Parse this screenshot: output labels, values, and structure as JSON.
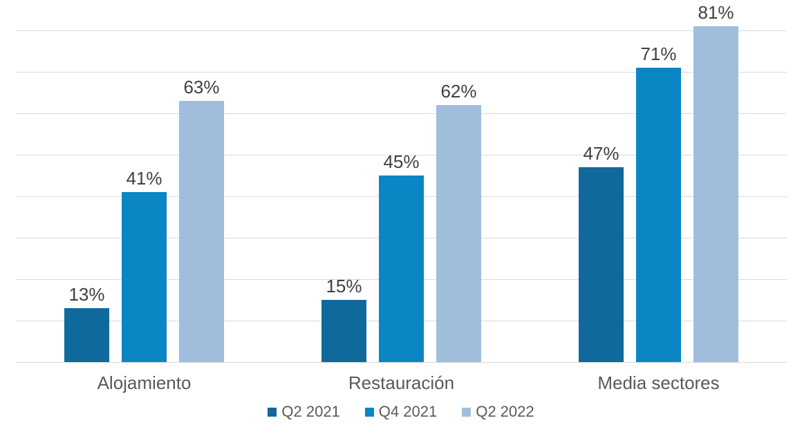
{
  "chart_data": {
    "type": "bar",
    "title": "",
    "xlabel": "",
    "ylabel": "",
    "categories": [
      "Alojamiento",
      "Restauración",
      "Media sectores"
    ],
    "series": [
      {
        "name": "Q2 2021",
        "color": "#10699c",
        "values": [
          13,
          15,
          47
        ]
      },
      {
        "name": "Q4 2021",
        "color": "#0b86c4",
        "values": [
          41,
          45,
          71
        ]
      },
      {
        "name": "Q2 2022",
        "color": "#a0bedc",
        "values": [
          63,
          62,
          81
        ]
      }
    ],
    "value_suffix": "%",
    "data_labels_visible": true,
    "ylim": [
      0,
      85
    ],
    "y_axis_tick_labels_visible": false,
    "grid": true,
    "gridline_step_pct": 10,
    "gridline_max_pct": 80,
    "legend_position": "bottom"
  },
  "colors": {
    "background": "#ffffff",
    "gridline": "#d9d9d9",
    "data_label": "#404040",
    "category_label": "#595959",
    "legend_label": "#595959"
  }
}
